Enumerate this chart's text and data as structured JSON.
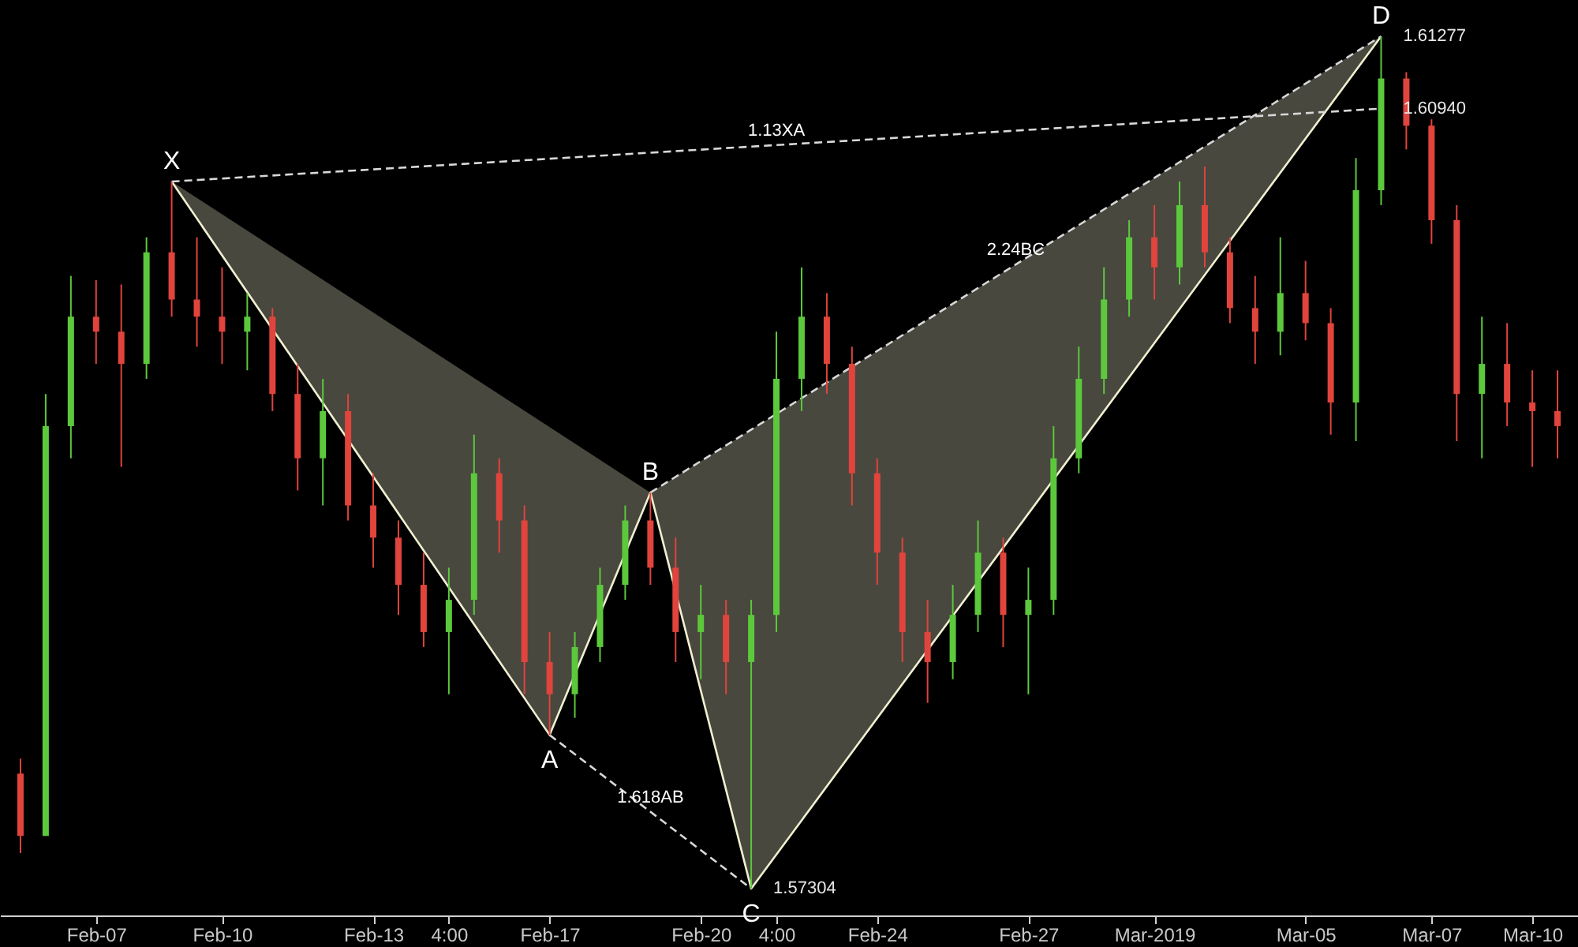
{
  "chart_data": {
    "type": "candlestick",
    "categories": [
      null,
      null,
      null,
      "Feb-07",
      null,
      null,
      null,
      null,
      "Feb-10",
      null,
      null,
      null,
      null,
      null,
      "Feb-13",
      null,
      null,
      "4:00",
      null,
      null,
      null,
      "Feb-17",
      null,
      null,
      null,
      null,
      null,
      "Feb-20",
      null,
      null,
      "4:00",
      null,
      null,
      null,
      "Feb-24",
      null,
      null,
      null,
      null,
      null,
      "Feb-27",
      null,
      null,
      null,
      null,
      "Mar-2019",
      null,
      null,
      null,
      null,
      null,
      "Mar-05",
      null,
      null,
      null,
      null,
      "Mar-07",
      null,
      null,
      null,
      "Mar-10",
      null
    ],
    "ohlc": [
      [
        1.5784,
        1.5791,
        1.5747,
        1.5755
      ],
      [
        1.5755,
        1.5961,
        1.5755,
        1.5946
      ],
      [
        1.5946,
        1.6016,
        1.5931,
        1.5997
      ],
      [
        1.5997,
        1.6014,
        1.5975,
        1.599
      ],
      [
        1.599,
        1.6012,
        1.5927,
        1.5975
      ],
      [
        1.5975,
        1.6034,
        1.5968,
        1.6027
      ],
      [
        1.6027,
        1.606,
        1.5997,
        1.6005
      ],
      [
        1.6005,
        1.6034,
        1.5983,
        1.5997
      ],
      [
        1.5997,
        1.602,
        1.5975,
        1.599
      ],
      [
        1.599,
        1.6008,
        1.5972,
        1.5997
      ],
      [
        1.5997,
        1.6001,
        1.5953,
        1.5961
      ],
      [
        1.5961,
        1.5975,
        1.5916,
        1.5931
      ],
      [
        1.5931,
        1.5968,
        1.5909,
        1.5953
      ],
      [
        1.5953,
        1.5961,
        1.5902,
        1.5909
      ],
      [
        1.5909,
        1.5924,
        1.588,
        1.5894
      ],
      [
        1.5894,
        1.5902,
        1.5858,
        1.5872
      ],
      [
        1.5872,
        1.5887,
        1.5843,
        1.585
      ],
      [
        1.585,
        1.588,
        1.5821,
        1.5865
      ],
      [
        1.5865,
        1.5942,
        1.5858,
        1.5924
      ],
      [
        1.5924,
        1.5931,
        1.5887,
        1.5902
      ],
      [
        1.5902,
        1.5909,
        1.5821,
        1.5836
      ],
      [
        1.5836,
        1.585,
        1.5802,
        1.5821
      ],
      [
        1.5821,
        1.585,
        1.581,
        1.5843
      ],
      [
        1.5843,
        1.588,
        1.5836,
        1.5872
      ],
      [
        1.5872,
        1.5909,
        1.5865,
        1.5902
      ],
      [
        1.5902,
        1.5915,
        1.5872,
        1.588
      ],
      [
        1.588,
        1.5894,
        1.5836,
        1.585
      ],
      [
        1.585,
        1.5872,
        1.5828,
        1.5858
      ],
      [
        1.5858,
        1.5865,
        1.5821,
        1.5836
      ],
      [
        1.5836,
        1.5865,
        1.57304,
        1.5858
      ],
      [
        1.5858,
        1.599,
        1.585,
        1.5968
      ],
      [
        1.5968,
        1.602,
        1.5953,
        1.5997
      ],
      [
        1.5997,
        1.6008,
        1.5961,
        1.5975
      ],
      [
        1.5975,
        1.5983,
        1.5909,
        1.5924
      ],
      [
        1.5924,
        1.5931,
        1.5872,
        1.5887
      ],
      [
        1.5887,
        1.5894,
        1.5836,
        1.585
      ],
      [
        1.585,
        1.5865,
        1.5817,
        1.5836
      ],
      [
        1.5836,
        1.5872,
        1.5828,
        1.5858
      ],
      [
        1.5858,
        1.5902,
        1.585,
        1.5887
      ],
      [
        1.5887,
        1.5894,
        1.5843,
        1.5858
      ],
      [
        1.5858,
        1.588,
        1.5821,
        1.5865
      ],
      [
        1.5865,
        1.5946,
        1.5858,
        1.5931
      ],
      [
        1.5931,
        1.5983,
        1.5924,
        1.5968
      ],
      [
        1.5968,
        1.602,
        1.5961,
        1.6005
      ],
      [
        1.6005,
        1.6042,
        1.5997,
        1.6034
      ],
      [
        1.6034,
        1.6049,
        1.6005,
        1.602
      ],
      [
        1.602,
        1.606,
        1.6012,
        1.6049
      ],
      [
        1.6049,
        1.6067,
        1.602,
        1.6027
      ],
      [
        1.6027,
        1.6034,
        1.5994,
        1.6001
      ],
      [
        1.6001,
        1.6016,
        1.5975,
        1.599
      ],
      [
        1.599,
        1.6034,
        1.5979,
        1.6008
      ],
      [
        1.6008,
        1.6023,
        1.5986,
        1.5994
      ],
      [
        1.5994,
        1.6001,
        1.5942,
        1.5957
      ],
      [
        1.5957,
        1.6071,
        1.5939,
        1.6056
      ],
      [
        1.6056,
        1.61277,
        1.6049,
        1.6108
      ],
      [
        1.6108,
        1.6111,
        1.6075,
        1.6086
      ],
      [
        1.6086,
        1.6089,
        1.6031,
        1.6042
      ],
      [
        1.6042,
        1.6049,
        1.5939,
        1.5961
      ],
      [
        1.5961,
        1.5997,
        1.5931,
        1.5975
      ],
      [
        1.5975,
        1.5994,
        1.5946,
        1.5957
      ],
      [
        1.5957,
        1.5972,
        1.5927,
        1.5953
      ],
      [
        1.5953,
        1.5972,
        1.5931,
        1.5946
      ]
    ],
    "colors": [
      "#e0443c",
      "#5cc83c",
      "#5cc83c",
      "#e0443c",
      "#e0443c",
      "#5cc83c",
      "#e0443c",
      "#e0443c",
      "#e0443c",
      "#5cc83c",
      "#e0443c",
      "#e0443c",
      "#5cc83c",
      "#e0443c",
      "#e0443c",
      "#e0443c",
      "#e0443c",
      "#5cc83c",
      "#5cc83c",
      "#e0443c",
      "#e0443c",
      "#e0443c",
      "#5cc83c",
      "#5cc83c",
      "#5cc83c",
      "#e0443c",
      "#e0443c",
      "#5cc83c",
      "#e0443c",
      "#5cc83c",
      "#5cc83c",
      "#5cc83c",
      "#e0443c",
      "#e0443c",
      "#e0443c",
      "#e0443c",
      "#e0443c",
      "#5cc83c",
      "#5cc83c",
      "#e0443c",
      "#5cc83c",
      "#5cc83c",
      "#5cc83c",
      "#5cc83c",
      "#5cc83c",
      "#e0443c",
      "#5cc83c",
      "#e0443c",
      "#e0443c",
      "#e0443c",
      "#5cc83c",
      "#e0443c",
      "#e0443c",
      "#5cc83c",
      "#5cc83c",
      "#e0443c",
      "#e0443c",
      "#e0443c",
      "#5cc83c",
      "#e0443c",
      "#e0443c",
      "#e0443c"
    ],
    "series": [
      {
        "type": "line",
        "values": [
          null,
          null,
          null,
          null,
          null,
          null,
          1.606,
          null,
          null,
          null,
          null,
          null,
          null,
          null,
          null,
          null,
          null,
          null,
          null,
          null,
          null,
          1.5802,
          null,
          null,
          null,
          1.5915,
          null,
          null,
          null,
          1.57304,
          null,
          null,
          null,
          null,
          null,
          null,
          null,
          null,
          null,
          null,
          null,
          null,
          null,
          null,
          null,
          null,
          null,
          null,
          null,
          null,
          null,
          null,
          null,
          null,
          1.61277,
          null,
          null,
          null,
          null,
          null,
          null,
          null
        ],
        "color": "#f0f0d0",
        "line_style": "solid"
      },
      {
        "type": "line",
        "values": [
          null,
          null,
          null,
          null,
          null,
          null,
          1.606,
          null,
          null,
          null,
          null,
          null,
          null,
          null,
          null,
          null,
          null,
          null,
          null,
          null,
          null,
          null,
          null,
          null,
          null,
          null,
          null,
          null,
          null,
          null,
          null,
          null,
          null,
          null,
          null,
          null,
          null,
          null,
          null,
          null,
          null,
          null,
          null,
          null,
          null,
          null,
          null,
          null,
          null,
          null,
          null,
          null,
          null,
          null,
          1.6094,
          null,
          null,
          null,
          null,
          null,
          null,
          null
        ],
        "color": "#d8d8d8",
        "line_style": "dashed"
      },
      {
        "type": "line",
        "values": [
          null,
          null,
          null,
          null,
          null,
          null,
          null,
          null,
          null,
          null,
          null,
          null,
          null,
          null,
          null,
          null,
          null,
          null,
          null,
          null,
          null,
          null,
          null,
          null,
          null,
          1.5915,
          null,
          null,
          null,
          null,
          null,
          null,
          null,
          null,
          null,
          null,
          null,
          null,
          null,
          null,
          null,
          null,
          null,
          null,
          null,
          null,
          null,
          null,
          null,
          null,
          null,
          null,
          null,
          null,
          1.61277,
          null,
          null,
          null,
          null,
          null,
          null,
          null
        ],
        "color": "#d8d8d8",
        "line_style": "dashed"
      },
      {
        "type": "line",
        "values": [
          null,
          null,
          null,
          null,
          null,
          null,
          null,
          null,
          null,
          null,
          null,
          null,
          null,
          null,
          null,
          null,
          null,
          null,
          null,
          null,
          null,
          1.5802,
          null,
          null,
          null,
          null,
          null,
          null,
          null,
          1.57304,
          null,
          null,
          null,
          null,
          null,
          null,
          null,
          null,
          null,
          null,
          null,
          null,
          null,
          null,
          null,
          null,
          null,
          null,
          null,
          null,
          null,
          null,
          null,
          null,
          null,
          null,
          null,
          null,
          null,
          null,
          null,
          null
        ],
        "color": "#d8d8d8",
        "line_style": "dashed"
      }
    ],
    "tick_labels": "x",
    "annotations": [
      {
        "text": "X",
        "y": 1.606
      },
      {
        "text": "A",
        "y": 1.5802
      },
      {
        "text": "B",
        "y": 1.5915
      },
      {
        "text": "C",
        "y": 1.57304
      },
      {
        "text": "D",
        "y": 1.61277
      },
      "1.13XA",
      "2.24BC",
      "1.618AB",
      "1.61277",
      "1.60940",
      "1.57304"
    ]
  }
}
